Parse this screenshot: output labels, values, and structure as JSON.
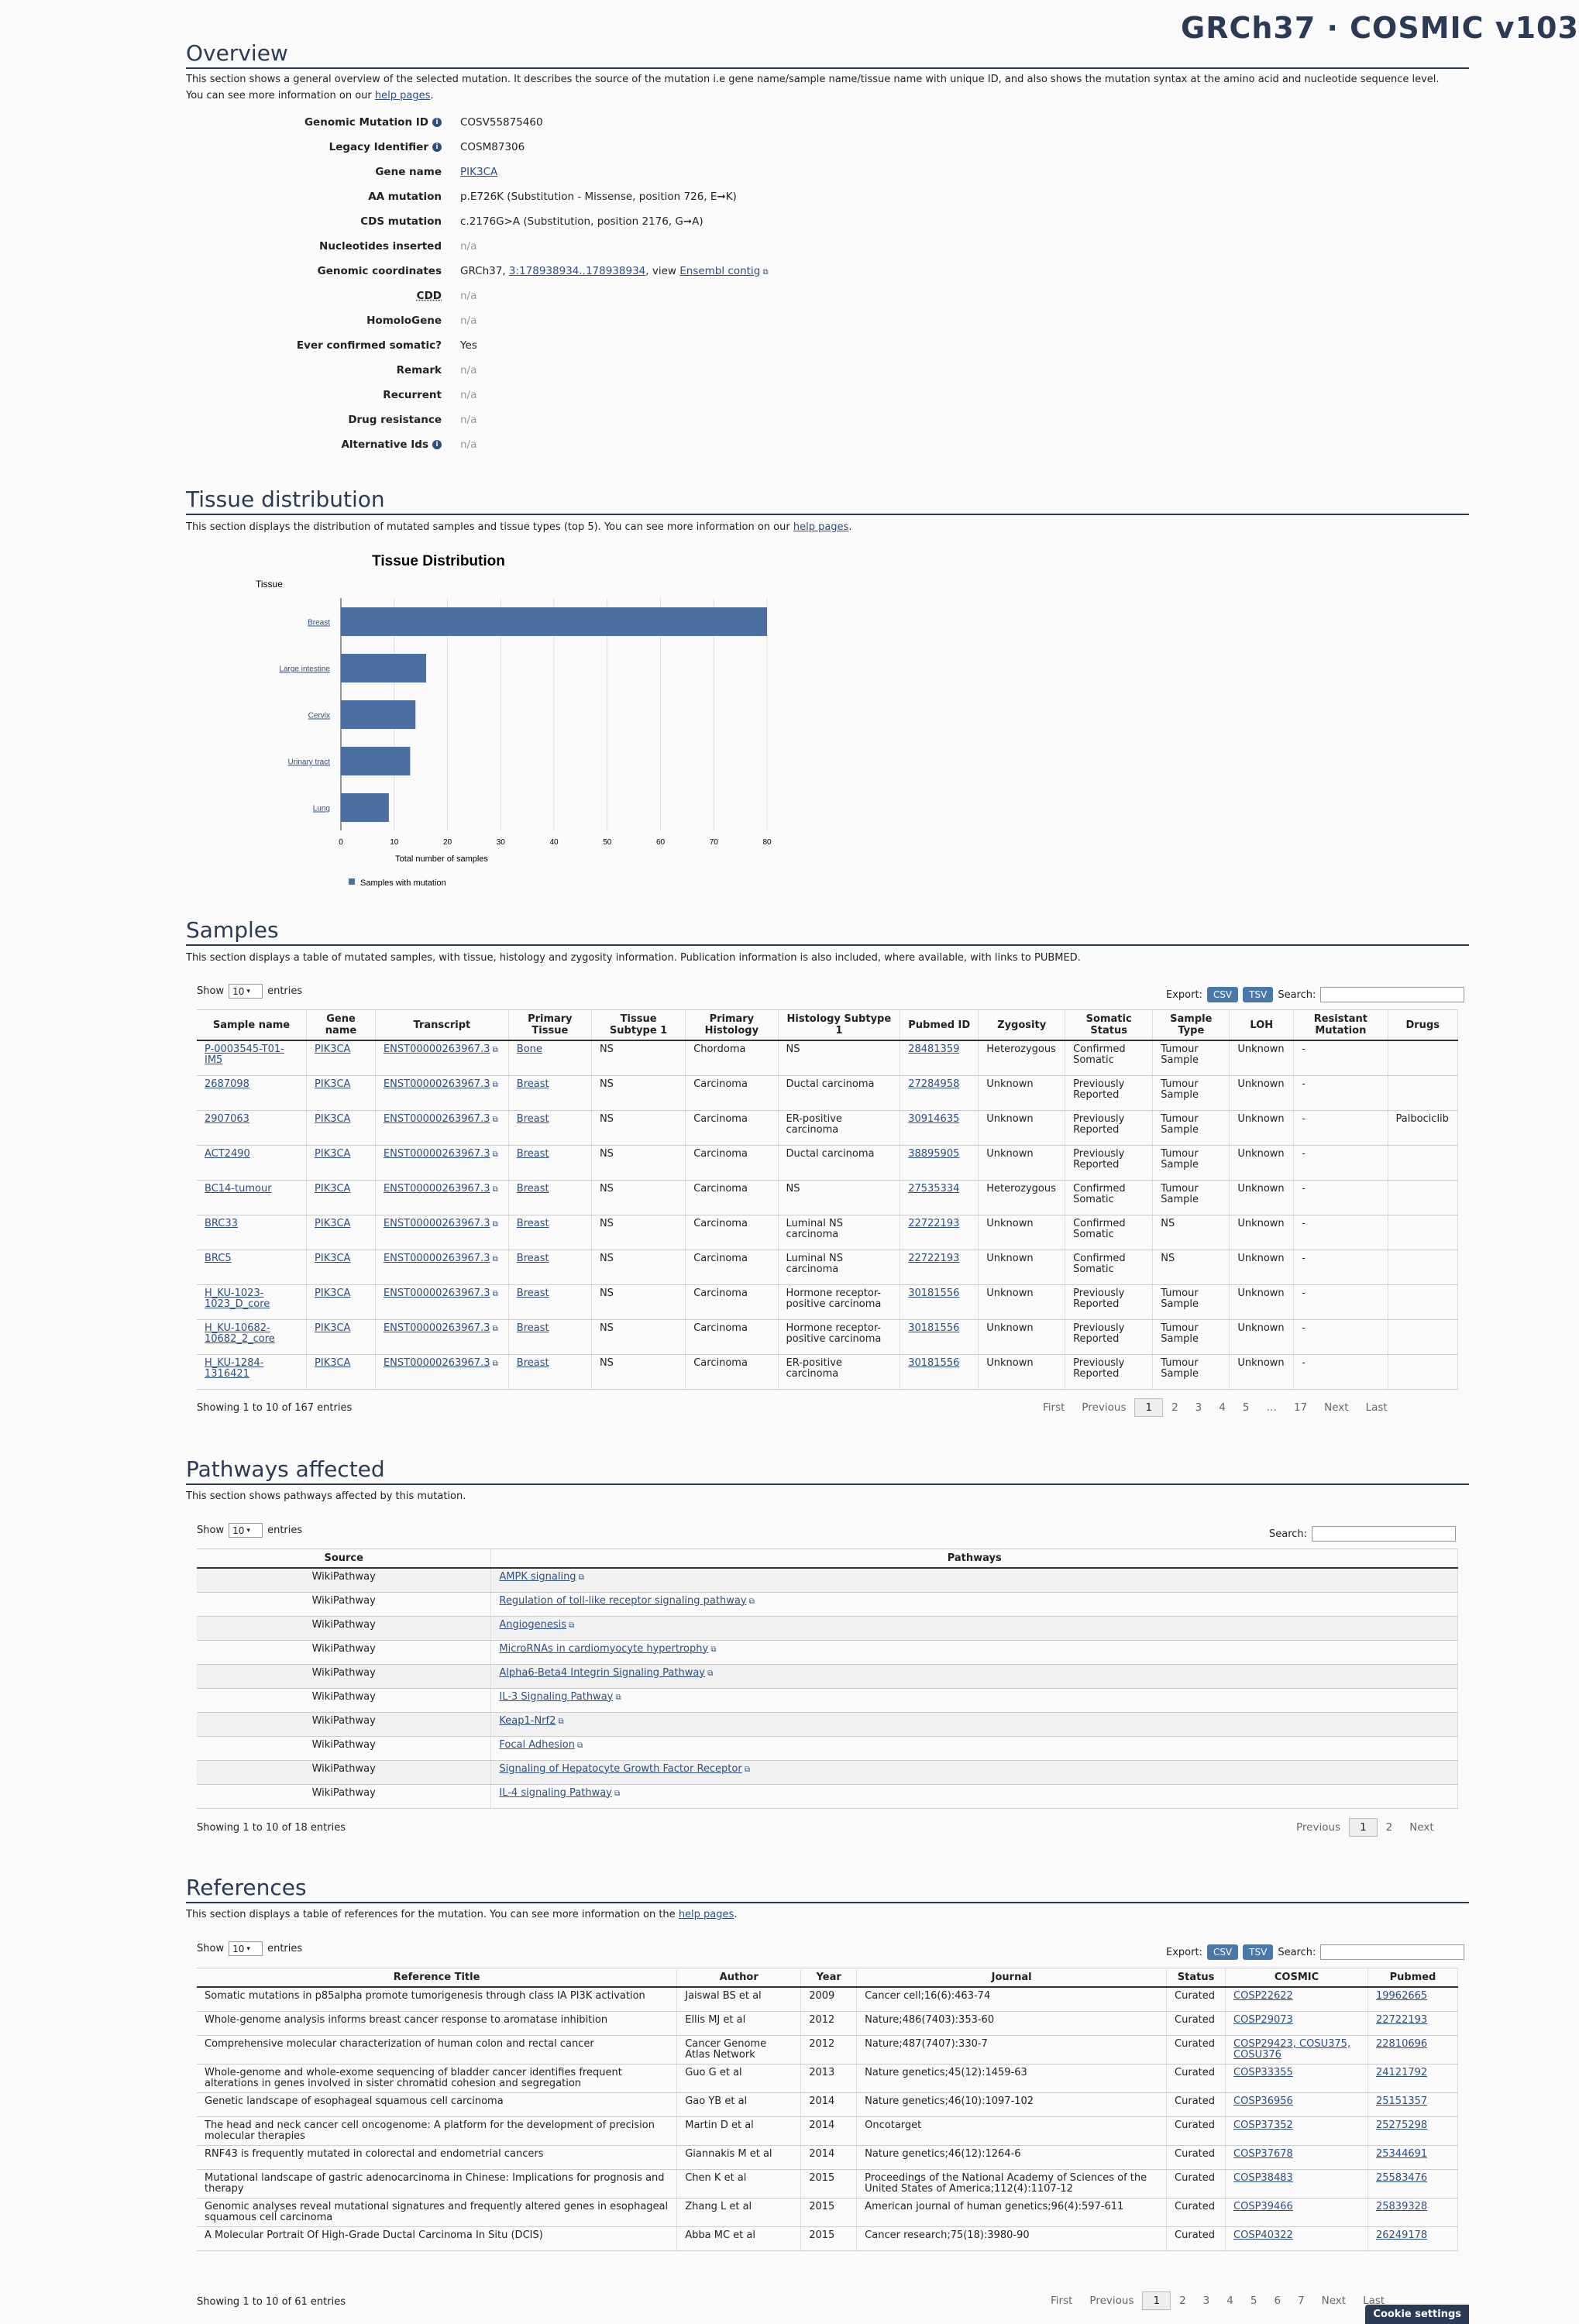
{
  "header": {
    "title": "GRCh37 · COSMIC v103"
  },
  "overview": {
    "heading": "Overview",
    "desc_pre": "This section shows a general overview of the selected mutation. It describes the source of the mutation i.e gene name/sample name/tissue name with unique ID, and also shows the mutation syntax at the amino acid and nucleotide sequence level. You can see more information on our ",
    "help_link": "help pages",
    "rows": [
      {
        "label": "Genomic Mutation ID",
        "value": "COSV55875460"
      },
      {
        "label": "Legacy Identifier",
        "value": "COSM87306"
      },
      {
        "label": "Gene name",
        "value": "PIK3CA"
      },
      {
        "label": "AA mutation",
        "value": "p.E726K (Substitution - Missense, position 726, E➞K)"
      },
      {
        "label": "CDS mutation",
        "value": "c.2176G>A (Substitution, position 2176, G➞A)"
      },
      {
        "label": "Nucleotides inserted",
        "value": "n/a"
      },
      {
        "label": "Genomic coordinates",
        "value": "GRCh37,"
      },
      {
        "label": "CDD",
        "value": "n/a"
      },
      {
        "label": "HomoloGene",
        "value": "n/a"
      },
      {
        "label": "Ever confirmed somatic?",
        "value": "Yes"
      },
      {
        "label": "Remark",
        "value": "n/a"
      },
      {
        "label": "Recurrent",
        "value": "n/a"
      },
      {
        "label": "Drug resistance",
        "value": "n/a"
      },
      {
        "label": "Alternative Ids",
        "value": "n/a"
      }
    ],
    "coord_link": "3:178938934..178938934",
    "coord_view": ", view ",
    "ensembl_link": "Ensembl contig"
  },
  "tissue": {
    "heading": "Tissue distribution",
    "desc_pre": "This section displays the distribution of mutated samples and tissue types (top 5). You can see more information on our ",
    "help_link": "help pages"
  },
  "chart_data": {
    "type": "bar",
    "title": "Tissue Distribution",
    "ylabel": "Tissue",
    "xlabel": "Total number of samples",
    "categories": [
      "Breast",
      "Large intestine",
      "Cervix",
      "Urinary tract",
      "Lung"
    ],
    "series": [
      {
        "name": "Samples with mutation",
        "values": [
          80,
          16,
          14,
          13,
          9
        ]
      }
    ],
    "xlim": [
      0,
      80
    ],
    "ticks": [
      "0",
      "10",
      "20",
      "30",
      "40",
      "50",
      "60",
      "70",
      "80"
    ],
    "color": "#4a6fa0",
    "grid": true,
    "legend": "bottom"
  },
  "samples": {
    "heading": "Samples",
    "desc": "This section displays a table of mutated samples, with tissue, histology and zygosity information. Publication information is also included, where available, with links to PUBMED.",
    "show": "Show",
    "entries": "entries",
    "page_size": "10",
    "export": "Export:",
    "csv": "CSV",
    "tsv": "TSV",
    "search": "Search:",
    "columns": [
      "Sample name",
      "Gene name",
      "Transcript",
      "Primary Tissue",
      "Tissue Subtype 1",
      "Primary Histology",
      "Histology Subtype 1",
      "Pubmed ID",
      "Zygosity",
      "Somatic Status",
      "Sample Type",
      "LOH",
      "Resistant Mutation",
      "Drugs"
    ],
    "rows": [
      [
        "P-0003545-T01-IM5",
        "PIK3CA",
        "ENST00000263967.3",
        "Bone",
        "NS",
        "Chordoma",
        "NS",
        "28481359",
        "Heterozygous",
        "Confirmed Somatic",
        "Tumour Sample",
        "Unknown",
        "-",
        ""
      ],
      [
        "2687098",
        "PIK3CA",
        "ENST00000263967.3",
        "Breast",
        "NS",
        "Carcinoma",
        "Ductal carcinoma",
        "27284958",
        "Unknown",
        "Previously Reported",
        "Tumour Sample",
        "Unknown",
        "-",
        ""
      ],
      [
        "2907063",
        "PIK3CA",
        "ENST00000263967.3",
        "Breast",
        "NS",
        "Carcinoma",
        "ER-positive carcinoma",
        "30914635",
        "Unknown",
        "Previously Reported",
        "Tumour Sample",
        "Unknown",
        "-",
        "Palbociclib"
      ],
      [
        "ACT2490",
        "PIK3CA",
        "ENST00000263967.3",
        "Breast",
        "NS",
        "Carcinoma",
        "Ductal carcinoma",
        "38895905",
        "Unknown",
        "Previously Reported",
        "Tumour Sample",
        "Unknown",
        "-",
        ""
      ],
      [
        "BC14-tumour",
        "PIK3CA",
        "ENST00000263967.3",
        "Breast",
        "NS",
        "Carcinoma",
        "NS",
        "27535334",
        "Heterozygous",
        "Confirmed Somatic",
        "Tumour Sample",
        "Unknown",
        "-",
        ""
      ],
      [
        "BRC33",
        "PIK3CA",
        "ENST00000263967.3",
        "Breast",
        "NS",
        "Carcinoma",
        "Luminal NS carcinoma",
        "22722193",
        "Unknown",
        "Confirmed Somatic",
        "NS",
        "Unknown",
        "-",
        ""
      ],
      [
        "BRC5",
        "PIK3CA",
        "ENST00000263967.3",
        "Breast",
        "NS",
        "Carcinoma",
        "Luminal NS carcinoma",
        "22722193",
        "Unknown",
        "Confirmed Somatic",
        "NS",
        "Unknown",
        "-",
        ""
      ],
      [
        "H_KU-1023-1023_D_core",
        "PIK3CA",
        "ENST00000263967.3",
        "Breast",
        "NS",
        "Carcinoma",
        "Hormone receptor-positive carcinoma",
        "30181556",
        "Unknown",
        "Previously Reported",
        "Tumour Sample",
        "Unknown",
        "-",
        ""
      ],
      [
        "H_KU-10682-10682_2_core",
        "PIK3CA",
        "ENST00000263967.3",
        "Breast",
        "NS",
        "Carcinoma",
        "Hormone receptor-positive carcinoma",
        "30181556",
        "Unknown",
        "Previously Reported",
        "Tumour Sample",
        "Unknown",
        "-",
        ""
      ],
      [
        "H_KU-1284-1316421",
        "PIK3CA",
        "ENST00000263967.3",
        "Breast",
        "NS",
        "Carcinoma",
        "ER-positive carcinoma",
        "30181556",
        "Unknown",
        "Previously Reported",
        "Tumour Sample",
        "Unknown",
        "-",
        ""
      ]
    ],
    "info": "Showing 1 to 10 of 167 entries",
    "pager": [
      "First",
      "Previous",
      "1",
      "2",
      "3",
      "4",
      "5",
      "…",
      "17",
      "Next",
      "Last"
    ]
  },
  "pathways": {
    "heading": "Pathways affected",
    "desc": "This section shows pathways affected by this mutation.",
    "columns": [
      "Source",
      "Pathways"
    ],
    "rows": [
      [
        "WikiPathway",
        "AMPK signaling"
      ],
      [
        "WikiPathway",
        "Regulation of toll-like receptor signaling pathway"
      ],
      [
        "WikiPathway",
        "Angiogenesis"
      ],
      [
        "WikiPathway",
        "MicroRNAs in cardiomyocyte hypertrophy"
      ],
      [
        "WikiPathway",
        "Alpha6-Beta4 Integrin Signaling Pathway"
      ],
      [
        "WikiPathway",
        "IL-3 Signaling Pathway"
      ],
      [
        "WikiPathway",
        "Keap1-Nrf2"
      ],
      [
        "WikiPathway",
        "Focal Adhesion"
      ],
      [
        "WikiPathway",
        "Signaling of Hepatocyte Growth Factor Receptor"
      ],
      [
        "WikiPathway",
        "IL-4 signaling Pathway"
      ]
    ],
    "info": "Showing 1 to 10 of 18 entries",
    "pager": [
      "Previous",
      "1",
      "2",
      "Next"
    ]
  },
  "references": {
    "heading": "References",
    "desc_pre": "This section displays a table of references for the mutation. You can see more information on the ",
    "help_link": "help pages",
    "columns": [
      "Reference Title",
      "Author",
      "Year",
      "Journal",
      "Status",
      "COSMIC",
      "Pubmed"
    ],
    "rows": [
      [
        "Somatic mutations in p85alpha promote tumorigenesis through class IA PI3K activation",
        "Jaiswal BS et al",
        "2009",
        "Cancer cell;16(6):463-74",
        "Curated",
        "COSP22622",
        "19962665"
      ],
      [
        "Whole-genome analysis informs breast cancer response to aromatase inhibition",
        "Ellis MJ et al",
        "2012",
        "Nature;486(7403):353-60",
        "Curated",
        "COSP29073",
        "22722193"
      ],
      [
        "Comprehensive molecular characterization of human colon and rectal cancer",
        "Cancer Genome Atlas Network",
        "2012",
        "Nature;487(7407):330-7",
        "Curated",
        "COSP29423, COSU375, COSU376",
        "22810696"
      ],
      [
        "Whole-genome and whole-exome sequencing of bladder cancer identifies frequent alterations in genes involved in sister chromatid cohesion and segregation",
        "Guo G et al",
        "2013",
        "Nature genetics;45(12):1459-63",
        "Curated",
        "COSP33355",
        "24121792"
      ],
      [
        "Genetic landscape of esophageal squamous cell carcinoma",
        "Gao YB et al",
        "2014",
        "Nature genetics;46(10):1097-102",
        "Curated",
        "COSP36956",
        "25151357"
      ],
      [
        "The head and neck cancer cell oncogenome: A platform for the development of precision molecular therapies",
        "Martin D et al",
        "2014",
        "Oncotarget",
        "Curated",
        "COSP37352",
        "25275298"
      ],
      [
        "RNF43 is frequently mutated in colorectal and endometrial cancers",
        "Giannakis M et al",
        "2014",
        "Nature genetics;46(12):1264-6",
        "Curated",
        "COSP37678",
        "25344691"
      ],
      [
        "Mutational landscape of gastric adenocarcinoma in Chinese: Implications for prognosis and therapy",
        "Chen K et al",
        "2015",
        "Proceedings of the National Academy of Sciences of the United States of America;112(4):1107-12",
        "Curated",
        "COSP38483",
        "25583476"
      ],
      [
        "Genomic analyses reveal mutational signatures and frequently altered genes in esophageal squamous cell carcinoma",
        "Zhang L et al",
        "2015",
        "American journal of human genetics;96(4):597-611",
        "Curated",
        "COSP39466",
        "25839328"
      ],
      [
        "A Molecular Portrait Of High-Grade Ductal Carcinoma In Situ (DCIS)",
        "Abba MC et al",
        "2015",
        "Cancer research;75(18):3980-90",
        "Curated",
        "COSP40322",
        "26249178"
      ]
    ],
    "info": "Showing 1 to 10 of 61 entries",
    "pager": [
      "First",
      "Previous",
      "1",
      "2",
      "3",
      "4",
      "5",
      "6",
      "7",
      "Next",
      "Last"
    ]
  },
  "cookie": "Cookie settings"
}
